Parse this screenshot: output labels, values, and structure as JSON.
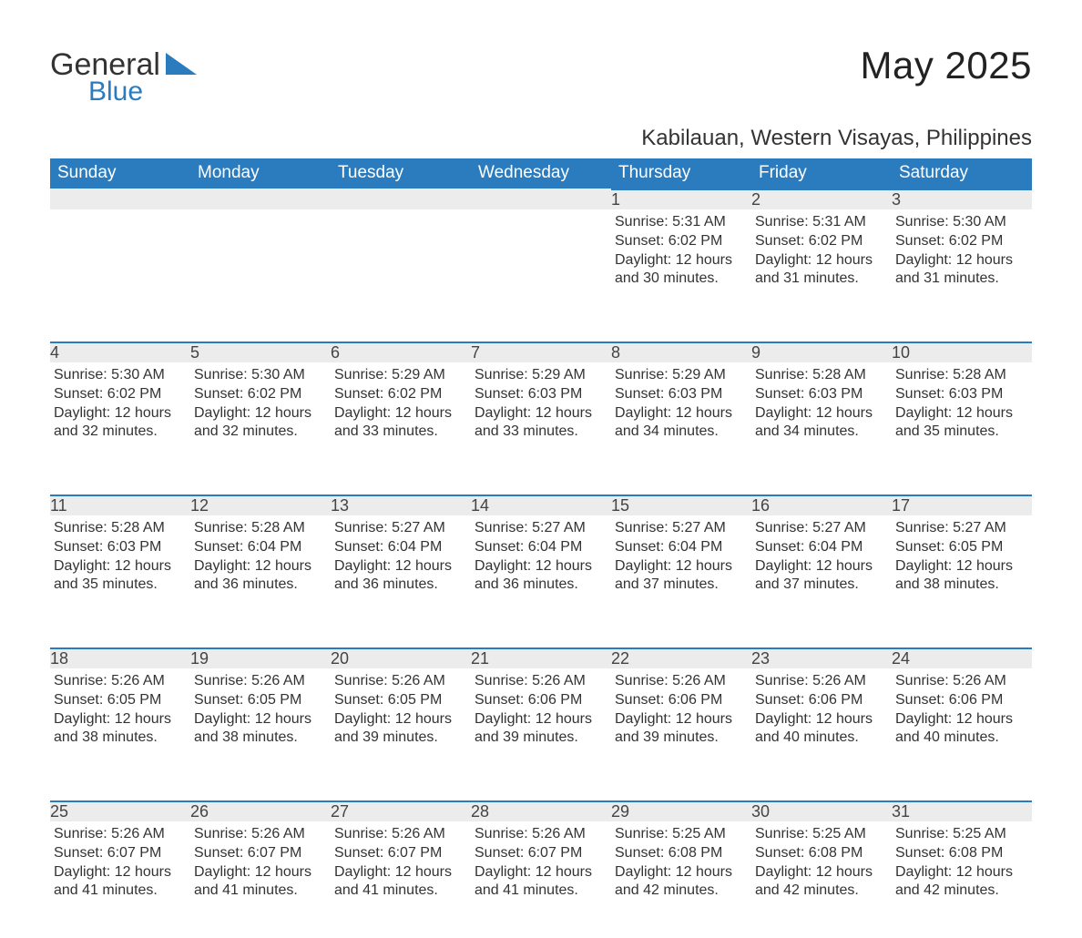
{
  "brand": {
    "name1": "General",
    "name2": "Blue",
    "tri_color": "#2b7bbf"
  },
  "title": "May 2025",
  "location": "Kabilauan, Western Visayas, Philippines",
  "colors": {
    "header_bg": "#2b7bbf",
    "header_text": "#ffffff",
    "daynum_bg": "#ececec",
    "daynum_border": "#2b7bbf",
    "text": "#333333",
    "background": "#ffffff"
  },
  "day_headers": [
    "Sunday",
    "Monday",
    "Tuesday",
    "Wednesday",
    "Thursday",
    "Friday",
    "Saturday"
  ],
  "weeks": [
    [
      null,
      null,
      null,
      null,
      {
        "n": "1",
        "sunrise": "5:31 AM",
        "sunset": "6:02 PM",
        "daylight": "12 hours and 30 minutes."
      },
      {
        "n": "2",
        "sunrise": "5:31 AM",
        "sunset": "6:02 PM",
        "daylight": "12 hours and 31 minutes."
      },
      {
        "n": "3",
        "sunrise": "5:30 AM",
        "sunset": "6:02 PM",
        "daylight": "12 hours and 31 minutes."
      }
    ],
    [
      {
        "n": "4",
        "sunrise": "5:30 AM",
        "sunset": "6:02 PM",
        "daylight": "12 hours and 32 minutes."
      },
      {
        "n": "5",
        "sunrise": "5:30 AM",
        "sunset": "6:02 PM",
        "daylight": "12 hours and 32 minutes."
      },
      {
        "n": "6",
        "sunrise": "5:29 AM",
        "sunset": "6:02 PM",
        "daylight": "12 hours and 33 minutes."
      },
      {
        "n": "7",
        "sunrise": "5:29 AM",
        "sunset": "6:03 PM",
        "daylight": "12 hours and 33 minutes."
      },
      {
        "n": "8",
        "sunrise": "5:29 AM",
        "sunset": "6:03 PM",
        "daylight": "12 hours and 34 minutes."
      },
      {
        "n": "9",
        "sunrise": "5:28 AM",
        "sunset": "6:03 PM",
        "daylight": "12 hours and 34 minutes."
      },
      {
        "n": "10",
        "sunrise": "5:28 AM",
        "sunset": "6:03 PM",
        "daylight": "12 hours and 35 minutes."
      }
    ],
    [
      {
        "n": "11",
        "sunrise": "5:28 AM",
        "sunset": "6:03 PM",
        "daylight": "12 hours and 35 minutes."
      },
      {
        "n": "12",
        "sunrise": "5:28 AM",
        "sunset": "6:04 PM",
        "daylight": "12 hours and 36 minutes."
      },
      {
        "n": "13",
        "sunrise": "5:27 AM",
        "sunset": "6:04 PM",
        "daylight": "12 hours and 36 minutes."
      },
      {
        "n": "14",
        "sunrise": "5:27 AM",
        "sunset": "6:04 PM",
        "daylight": "12 hours and 36 minutes."
      },
      {
        "n": "15",
        "sunrise": "5:27 AM",
        "sunset": "6:04 PM",
        "daylight": "12 hours and 37 minutes."
      },
      {
        "n": "16",
        "sunrise": "5:27 AM",
        "sunset": "6:04 PM",
        "daylight": "12 hours and 37 minutes."
      },
      {
        "n": "17",
        "sunrise": "5:27 AM",
        "sunset": "6:05 PM",
        "daylight": "12 hours and 38 minutes."
      }
    ],
    [
      {
        "n": "18",
        "sunrise": "5:26 AM",
        "sunset": "6:05 PM",
        "daylight": "12 hours and 38 minutes."
      },
      {
        "n": "19",
        "sunrise": "5:26 AM",
        "sunset": "6:05 PM",
        "daylight": "12 hours and 38 minutes."
      },
      {
        "n": "20",
        "sunrise": "5:26 AM",
        "sunset": "6:05 PM",
        "daylight": "12 hours and 39 minutes."
      },
      {
        "n": "21",
        "sunrise": "5:26 AM",
        "sunset": "6:06 PM",
        "daylight": "12 hours and 39 minutes."
      },
      {
        "n": "22",
        "sunrise": "5:26 AM",
        "sunset": "6:06 PM",
        "daylight": "12 hours and 39 minutes."
      },
      {
        "n": "23",
        "sunrise": "5:26 AM",
        "sunset": "6:06 PM",
        "daylight": "12 hours and 40 minutes."
      },
      {
        "n": "24",
        "sunrise": "5:26 AM",
        "sunset": "6:06 PM",
        "daylight": "12 hours and 40 minutes."
      }
    ],
    [
      {
        "n": "25",
        "sunrise": "5:26 AM",
        "sunset": "6:07 PM",
        "daylight": "12 hours and 41 minutes."
      },
      {
        "n": "26",
        "sunrise": "5:26 AM",
        "sunset": "6:07 PM",
        "daylight": "12 hours and 41 minutes."
      },
      {
        "n": "27",
        "sunrise": "5:26 AM",
        "sunset": "6:07 PM",
        "daylight": "12 hours and 41 minutes."
      },
      {
        "n": "28",
        "sunrise": "5:26 AM",
        "sunset": "6:07 PM",
        "daylight": "12 hours and 41 minutes."
      },
      {
        "n": "29",
        "sunrise": "5:25 AM",
        "sunset": "6:08 PM",
        "daylight": "12 hours and 42 minutes."
      },
      {
        "n": "30",
        "sunrise": "5:25 AM",
        "sunset": "6:08 PM",
        "daylight": "12 hours and 42 minutes."
      },
      {
        "n": "31",
        "sunrise": "5:25 AM",
        "sunset": "6:08 PM",
        "daylight": "12 hours and 42 minutes."
      }
    ]
  ],
  "labels": {
    "sunrise": "Sunrise: ",
    "sunset": "Sunset: ",
    "daylight": "Daylight: "
  }
}
